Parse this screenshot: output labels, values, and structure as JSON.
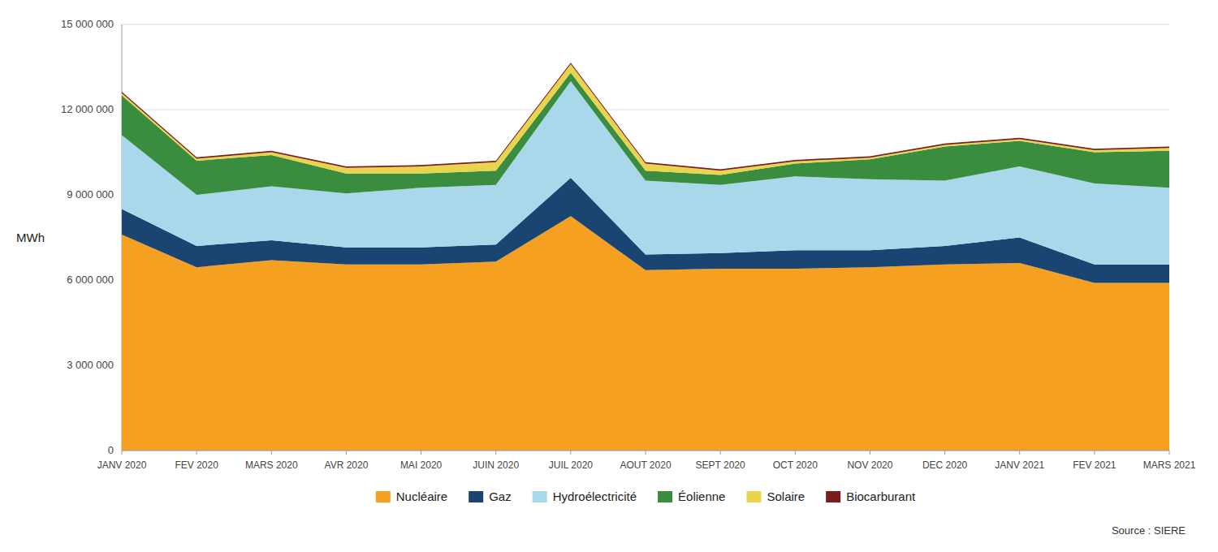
{
  "chart_data": {
    "type": "area",
    "stacked": true,
    "y_label": "MWh",
    "annotations": [
      "Source : SIERE"
    ],
    "categories": [
      "JANV 2020",
      "FEV 2020",
      "MARS 2020",
      "AVR 2020",
      "MAI 2020",
      "JUIN 2020",
      "JUIL 2020",
      "AOUT 2020",
      "SEPT 2020",
      "OCT 2020",
      "NOV 2020",
      "DEC 2020",
      "JANV 2021",
      "FEV 2021",
      "MARS 2021"
    ],
    "series": [
      {
        "name": "Nucléaire",
        "color": "#F5A020",
        "values": [
          7600000,
          6450000,
          6700000,
          6550000,
          6550000,
          6650000,
          8250000,
          6350000,
          6400000,
          6400000,
          6450000,
          6550000,
          6600000,
          5900000,
          5900000
        ]
      },
      {
        "name": "Gaz",
        "color": "#1A4472",
        "values": [
          900000,
          750000,
          700000,
          600000,
          600000,
          600000,
          1350000,
          550000,
          550000,
          650000,
          600000,
          650000,
          900000,
          650000,
          650000
        ]
      },
      {
        "name": "Hydroélectricité",
        "color": "#A8D8EA",
        "values": [
          2600000,
          1800000,
          1900000,
          1900000,
          2100000,
          2100000,
          3400000,
          2600000,
          2400000,
          2600000,
          2500000,
          2300000,
          2500000,
          2850000,
          2700000
        ]
      },
      {
        "name": "Éolienne",
        "color": "#3A8C3F",
        "values": [
          1400000,
          1200000,
          1100000,
          700000,
          500000,
          500000,
          300000,
          350000,
          350000,
          450000,
          700000,
          1200000,
          900000,
          1100000,
          1300000
        ]
      },
      {
        "name": "Solaire",
        "color": "#E8D44D",
        "values": [
          80000,
          70000,
          100000,
          200000,
          250000,
          300000,
          300000,
          250000,
          150000,
          80000,
          60000,
          60000,
          60000,
          70000,
          100000
        ]
      },
      {
        "name": "Biocarburant",
        "color": "#7B1C1C",
        "values": [
          50000,
          50000,
          50000,
          50000,
          50000,
          50000,
          50000,
          50000,
          50000,
          50000,
          50000,
          50000,
          50000,
          50000,
          50000
        ]
      }
    ],
    "ylim": [
      0,
      15000000
    ],
    "yticks": [
      0,
      {
        "value": 3000000,
        "label": "3 000 000"
      },
      {
        "value": 6000000,
        "label": "6 000 000"
      },
      {
        "value": 9000000,
        "label": "9 000 000"
      },
      {
        "value": 12000000,
        "label": "12 000 000"
      },
      {
        "value": 15000000,
        "label": "15 000 000"
      }
    ],
    "grid": true,
    "legend": "bottom"
  }
}
